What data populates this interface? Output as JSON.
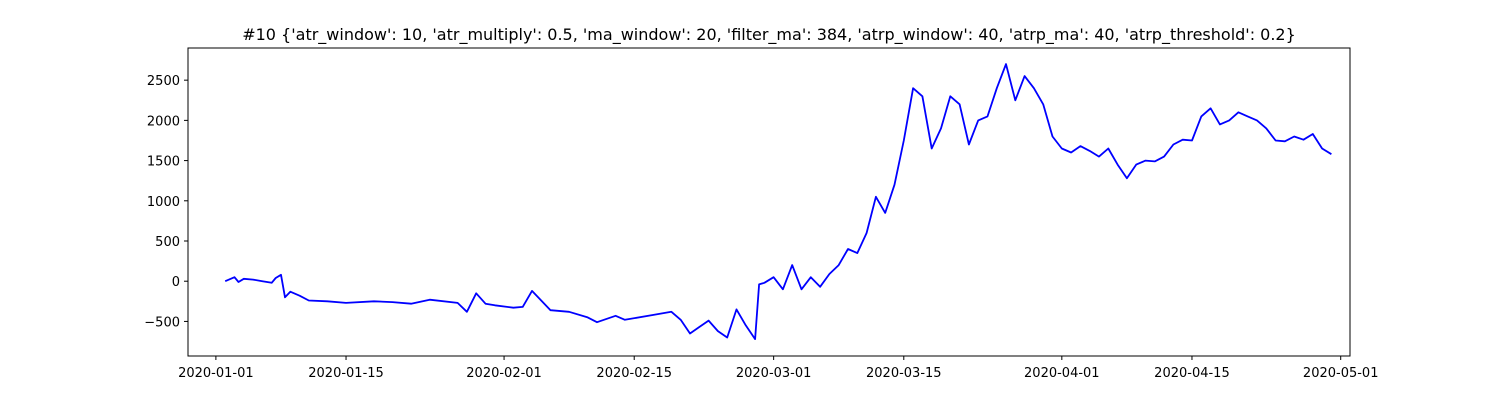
{
  "chart_data": {
    "type": "line",
    "title": "#10 {'atr_window': 10, 'atr_multiply': 0.5, 'ma_window': 20, 'filter_ma': 384, 'atrp_window': 40, 'atrp_ma': 40, 'atrp_threshold': 0.2}",
    "xlabel": "",
    "ylabel": "",
    "x_type": "date",
    "xlim": [
      "2019-12-29",
      "2020-05-02"
    ],
    "ylim": [
      -930,
      2900
    ],
    "x_ticks": [
      "2020-01-01",
      "2020-01-15",
      "2020-02-01",
      "2020-02-15",
      "2020-03-01",
      "2020-03-15",
      "2020-04-01",
      "2020-04-15",
      "2020-05-01"
    ],
    "y_ticks": [
      -500,
      0,
      500,
      1000,
      1500,
      2000,
      2500
    ],
    "y_tick_labels": [
      "−500",
      "0",
      "500",
      "1000",
      "1500",
      "2000",
      "2500"
    ],
    "grid": false,
    "legend": "none",
    "series": [
      {
        "color": "#0000ff",
        "x": [
          "2020-01-02",
          "2020-01-03",
          "2020-01-03",
          "2020-01-04",
          "2020-01-05",
          "2020-01-06",
          "2020-01-07",
          "2020-01-07",
          "2020-01-08",
          "2020-01-08",
          "2020-01-09",
          "2020-01-10",
          "2020-01-11",
          "2020-01-13",
          "2020-01-15",
          "2020-01-18",
          "2020-01-20",
          "2020-01-22",
          "2020-01-24",
          "2020-01-27",
          "2020-01-28",
          "2020-01-29",
          "2020-01-30",
          "2020-01-31",
          "2020-02-02",
          "2020-02-03",
          "2020-02-04",
          "2020-02-05",
          "2020-02-06",
          "2020-02-08",
          "2020-02-10",
          "2020-02-11",
          "2020-02-13",
          "2020-02-14",
          "2020-02-17",
          "2020-02-19",
          "2020-02-20",
          "2020-02-21",
          "2020-02-22",
          "2020-02-23",
          "2020-02-24",
          "2020-02-25",
          "2020-02-26",
          "2020-02-27",
          "2020-02-28",
          "2020-02-28",
          "2020-02-29",
          "2020-03-01",
          "2020-03-02",
          "2020-03-03",
          "2020-03-04",
          "2020-03-05",
          "2020-03-06",
          "2020-03-07",
          "2020-03-08",
          "2020-03-09",
          "2020-03-10",
          "2020-03-11",
          "2020-03-12",
          "2020-03-13",
          "2020-03-14",
          "2020-03-15",
          "2020-03-16",
          "2020-03-17",
          "2020-03-18",
          "2020-03-19",
          "2020-03-20",
          "2020-03-21",
          "2020-03-22",
          "2020-03-23",
          "2020-03-24",
          "2020-03-25",
          "2020-03-26",
          "2020-03-27",
          "2020-03-28",
          "2020-03-29",
          "2020-03-30",
          "2020-03-31",
          "2020-04-01",
          "2020-04-02",
          "2020-04-03",
          "2020-04-04",
          "2020-04-05",
          "2020-04-06",
          "2020-04-07",
          "2020-04-08",
          "2020-04-09",
          "2020-04-10",
          "2020-04-11",
          "2020-04-12",
          "2020-04-13",
          "2020-04-14",
          "2020-04-15",
          "2020-04-16",
          "2020-04-17",
          "2020-04-18",
          "2020-04-19",
          "2020-04-20",
          "2020-04-21",
          "2020-04-22",
          "2020-04-23",
          "2020-04-24",
          "2020-04-25",
          "2020-04-26",
          "2020-04-27",
          "2020-04-28",
          "2020-04-29",
          "2020-04-30"
        ],
        "y": [
          0,
          50,
          -10,
          30,
          20,
          0,
          -20,
          40,
          80,
          -200,
          -130,
          -180,
          -240,
          -250,
          -270,
          -250,
          -260,
          -280,
          -230,
          -270,
          -380,
          -150,
          -280,
          -300,
          -330,
          -320,
          -120,
          -240,
          -360,
          -380,
          -450,
          -510,
          -430,
          -480,
          -420,
          -380,
          -480,
          -650,
          -570,
          -490,
          -620,
          -700,
          -350,
          -550,
          -720,
          -40,
          -20,
          50,
          -100,
          200,
          -100,
          50,
          -70,
          90,
          200,
          400,
          350,
          600,
          1050,
          850,
          1200,
          1750,
          2400,
          2300,
          1650,
          1900,
          2300,
          2200,
          1700,
          2000,
          2050,
          2400,
          2700,
          2250,
          2550,
          2400,
          2200,
          1800,
          1650,
          1600,
          1680,
          1620,
          1550,
          1650,
          1450,
          1280,
          1450,
          1500,
          1490,
          1550,
          1700,
          1760,
          1750,
          2050,
          2150,
          1950,
          2000,
          2100,
          2050,
          2000,
          1900,
          1750,
          1740,
          1800,
          1760,
          1830,
          1650,
          1580
        ]
      }
    ]
  }
}
